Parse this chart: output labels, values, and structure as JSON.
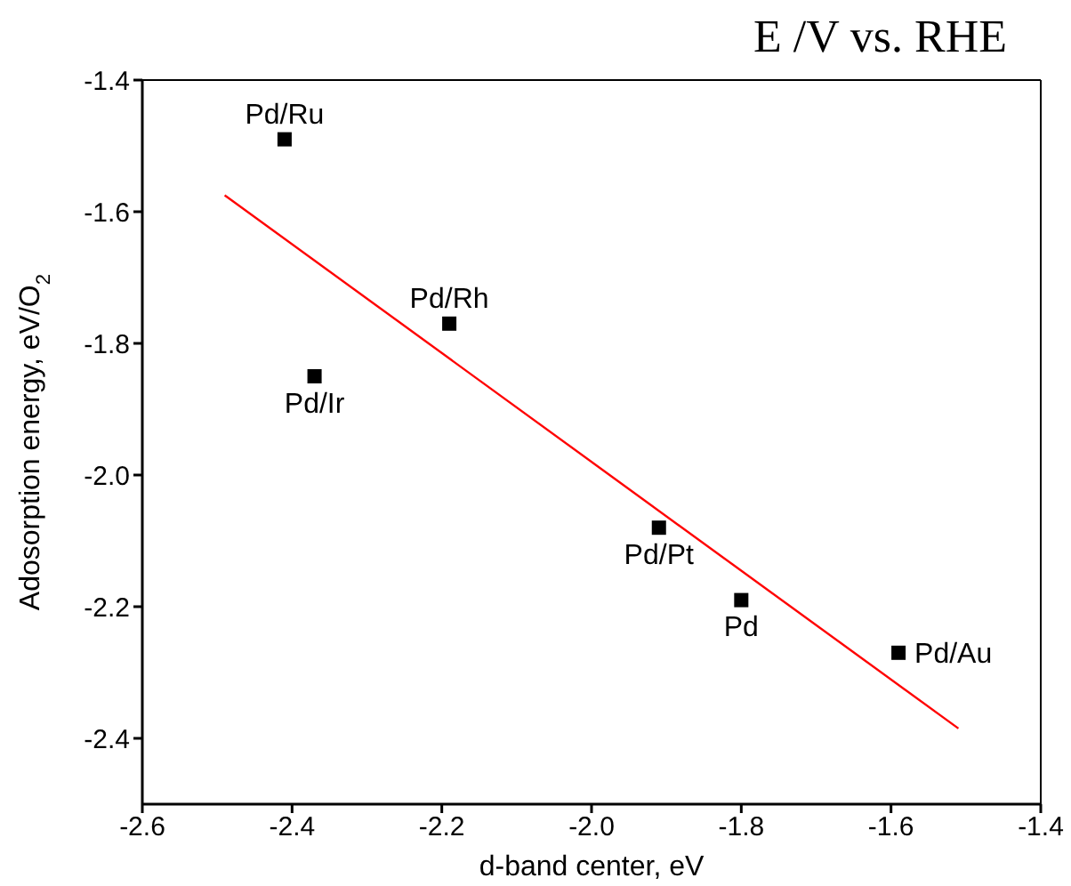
{
  "chart_data": {
    "type": "scatter",
    "title": "E /V vs. RHE",
    "xlabel": "d-band center, eV",
    "ylabel": "Adosorption energy, eV/O$_{2}$",
    "xlim": [
      -2.6,
      -1.4
    ],
    "xticks": [
      -2.6,
      -2.4,
      -2.2,
      {
        "value": -2.0,
        "label": "-2.0"
      },
      -1.8,
      -1.6,
      -1.4
    ],
    "ylim": [
      -2.5,
      -1.4
    ],
    "yticks": [
      -2.4,
      -2.2,
      {
        "value": -2.0,
        "label": "-2.0"
      },
      -1.8,
      -1.6,
      -1.4
    ],
    "grid": false,
    "legend": false,
    "series": [
      {
        "type": "scatter",
        "color": "#000000",
        "marker": "square",
        "x": [
          -2.41,
          -2.37,
          -2.19,
          -1.91,
          -1.8,
          -1.59
        ],
        "values": [
          -1.49,
          -1.85,
          -1.77,
          -2.08,
          -2.19,
          -2.27
        ]
      },
      {
        "type": "line",
        "color": "#ff0000",
        "marker": "none",
        "line_style": "solid",
        "x": [
          -2.49,
          -1.51
        ],
        "values": [
          -1.575,
          -2.385
        ]
      }
    ],
    "annotations": [
      {
        "text": "Pd/Ru",
        "x": -2.41,
        "y": -1.49
      },
      {
        "text": "Pd/Ir",
        "x": -2.37,
        "y": -1.85
      },
      {
        "text": "Pd/Rh",
        "x": -2.19,
        "y": -1.77
      },
      {
        "text": "Pd/Pt",
        "x": -1.91,
        "y": -2.08
      },
      {
        "text": "Pd",
        "x": -1.8,
        "y": -2.19
      },
      {
        "text": "Pd/Au",
        "x": -1.59,
        "y": -2.27
      }
    ]
  }
}
